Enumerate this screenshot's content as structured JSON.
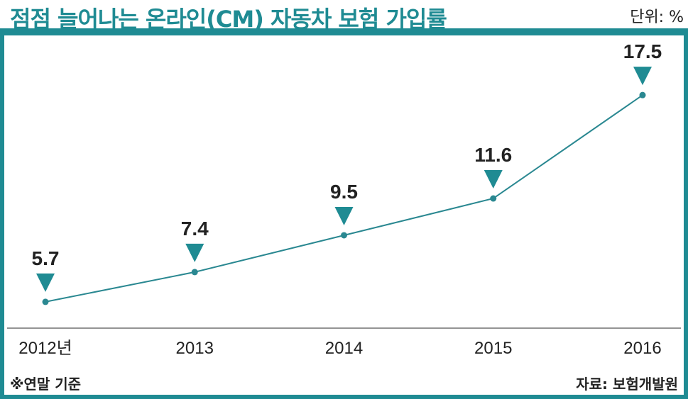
{
  "title": "점점 늘어나는 온라인(CM) 자동차 보험 가입률",
  "unit_label": "단위: %",
  "footnote": "※연말 기준",
  "source": "자료: 보험개발원",
  "colors": {
    "accent": "#1f8b93",
    "line": "#2a8891",
    "text": "#222222"
  },
  "chart_data": {
    "type": "line",
    "categories": [
      "2012년",
      "2013",
      "2014",
      "2015",
      "2016"
    ],
    "values": [
      5.7,
      7.4,
      9.5,
      11.6,
      17.5
    ],
    "value_labels": [
      "5.7",
      "7.4",
      "9.5",
      "11.6",
      "17.5"
    ],
    "title": "점점 늘어나는 온라인(CM) 자동차 보험 가입률",
    "xlabel": "",
    "ylabel": "단위: %",
    "ylim": [
      4.2,
      20.5
    ],
    "marker": "triangle-down-above-point",
    "grid": false
  }
}
